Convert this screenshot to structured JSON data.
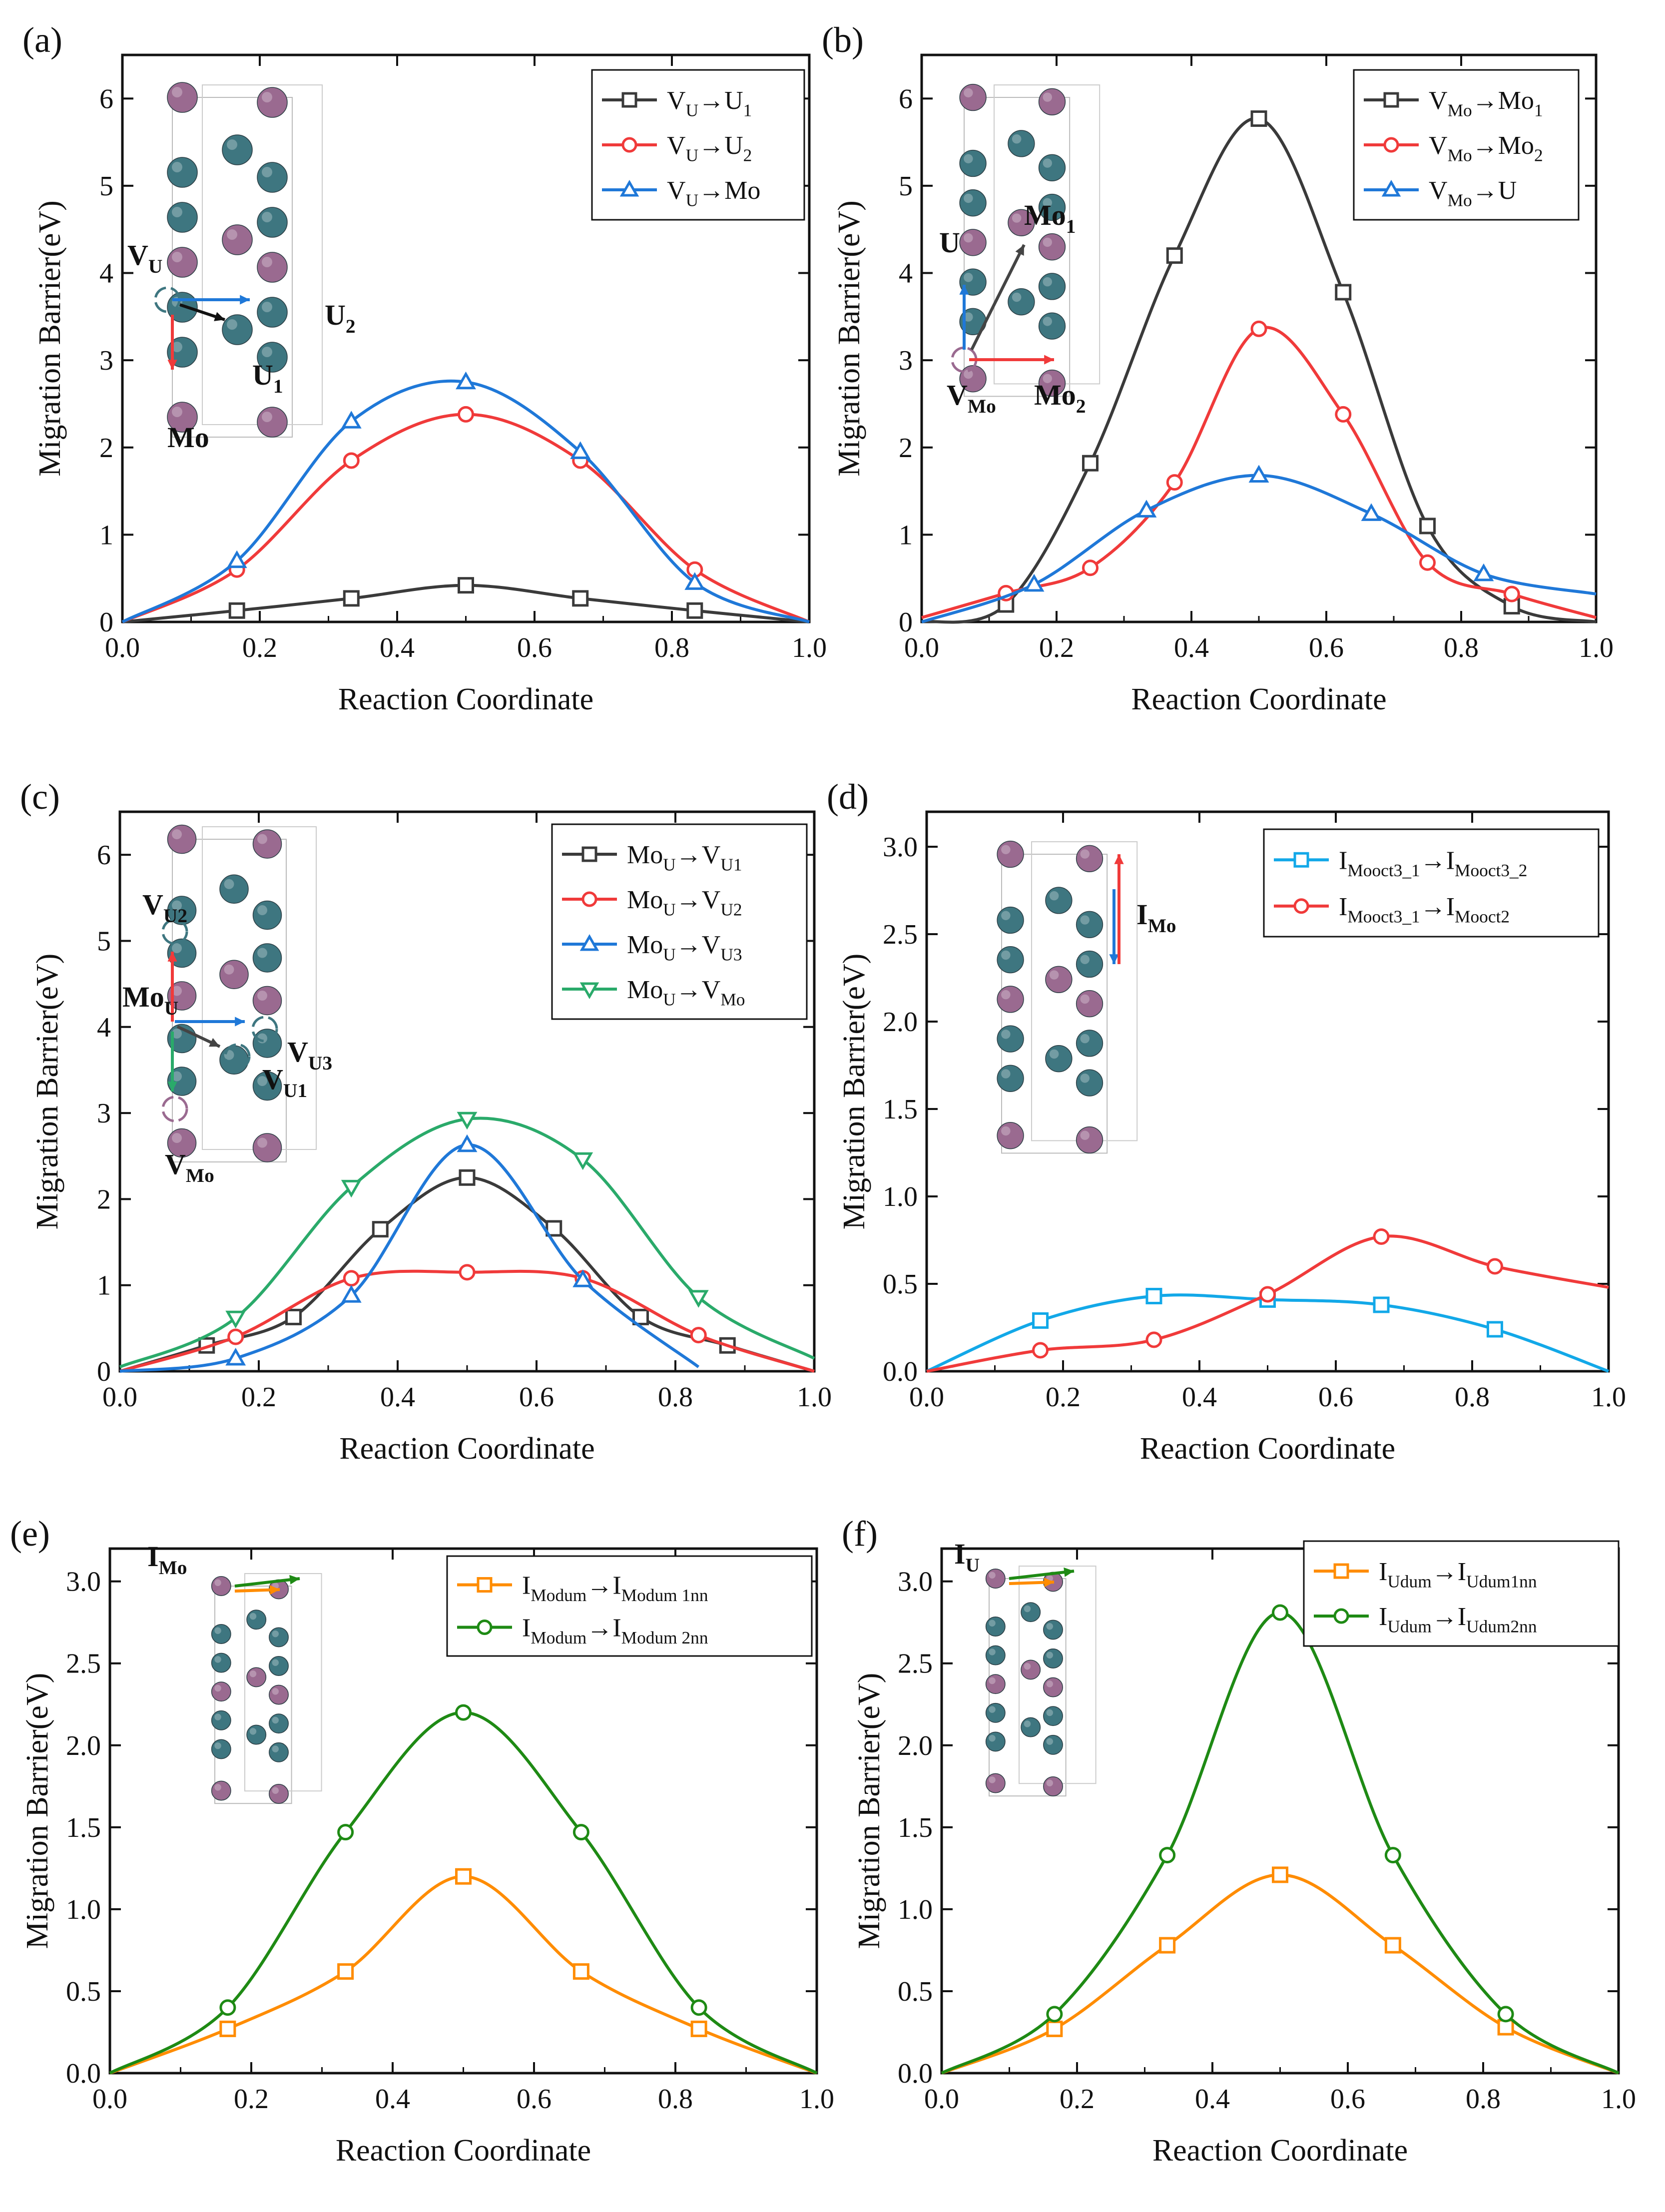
{
  "figure": {
    "description_free": true
  },
  "colors": {
    "black": "#3a3a3a",
    "red": "#f03a3a",
    "blue": "#1f78d8",
    "green": "#2aaa6a",
    "cyan": "#12a8e8",
    "orange": "#ff8c00",
    "darkgreen": "#1e8a14",
    "atom_u": "#3e7680",
    "atom_mo": "#9a6a90"
  },
  "chart_data": [
    {
      "panel": "(a)",
      "type": "line",
      "xlabel": "Reaction Coordinate",
      "ylabel": "Migration Barrier(eV)",
      "xlim": [
        0,
        1
      ],
      "ylim": [
        0,
        6.5
      ],
      "xticks": [
        0,
        0.2,
        0.4,
        0.6,
        0.8,
        1.0
      ],
      "xtick_labels": [
        "0.0",
        "0.2",
        "0.4",
        "0.6",
        "0.8",
        "1.0"
      ],
      "yticks": [
        0,
        1,
        2,
        3,
        4,
        5,
        6
      ],
      "ytick_labels": [
        "0",
        "1",
        "2",
        "3",
        "4",
        "5",
        "6"
      ],
      "legend_position": "top-right",
      "inset_labels": [
        "V_U",
        "U_2",
        "U_1",
        "Mo"
      ],
      "series": [
        {
          "name": "V_U→U_1",
          "color": "#3a3a3a",
          "marker": "square",
          "x": [
            0,
            0.1667,
            0.3333,
            0.5,
            0.6667,
            0.8333,
            1.0
          ],
          "y": [
            0,
            0.13,
            0.27,
            0.42,
            0.27,
            0.13,
            0
          ]
        },
        {
          "name": "V_U→U_2",
          "color": "#f03a3a",
          "marker": "circle",
          "x": [
            0,
            0.1667,
            0.3333,
            0.5,
            0.6667,
            0.8333,
            1.0
          ],
          "y": [
            0,
            0.6,
            1.85,
            2.38,
            1.85,
            0.6,
            0
          ]
        },
        {
          "name": "V_U→Mo",
          "color": "#1f78d8",
          "marker": "triangle-up",
          "x": [
            0,
            0.1667,
            0.3333,
            0.5,
            0.6667,
            0.8333,
            1.0
          ],
          "y": [
            0,
            0.7,
            2.3,
            2.75,
            1.95,
            0.45,
            0
          ]
        }
      ]
    },
    {
      "panel": "(b)",
      "type": "line",
      "xlabel": "Reaction Coordinate",
      "ylabel": "Migration Barrier(eV)",
      "xlim": [
        0,
        1
      ],
      "ylim": [
        0,
        6.5
      ],
      "xticks": [
        0,
        0.2,
        0.4,
        0.6,
        0.8,
        1.0
      ],
      "xtick_labels": [
        "0.0",
        "0.2",
        "0.4",
        "0.6",
        "0.8",
        "1.0"
      ],
      "yticks": [
        0,
        1,
        2,
        3,
        4,
        5,
        6
      ],
      "ytick_labels": [
        "0",
        "1",
        "2",
        "3",
        "4",
        "5",
        "6"
      ],
      "legend_position": "top-right",
      "inset_labels": [
        "Mo_1",
        "U",
        "V_Mo",
        "Mo_2"
      ],
      "series": [
        {
          "name": "V_Mo→Mo_1",
          "color": "#3a3a3a",
          "marker": "square",
          "x": [
            0,
            0.125,
            0.25,
            0.375,
            0.5,
            0.625,
            0.75,
            0.875,
            1.0
          ],
          "y": [
            0,
            0.2,
            1.82,
            4.2,
            5.77,
            3.78,
            1.1,
            0.18,
            0
          ]
        },
        {
          "name": "V_Mo→Mo_2",
          "color": "#f03a3a",
          "marker": "circle",
          "x": [
            0,
            0.125,
            0.25,
            0.375,
            0.5,
            0.625,
            0.75,
            0.875,
            1.0
          ],
          "y": [
            0.05,
            0.33,
            0.62,
            1.6,
            3.36,
            2.38,
            0.68,
            0.32,
            0.05
          ]
        },
        {
          "name": "V_Mo→U",
          "color": "#1f78d8",
          "marker": "triangle-up",
          "x": [
            0,
            0.1667,
            0.3333,
            0.5,
            0.6667,
            0.8333,
            1.0
          ],
          "y": [
            0,
            0.43,
            1.28,
            1.68,
            1.24,
            0.55,
            0.32
          ]
        }
      ]
    },
    {
      "panel": "(c)",
      "type": "line",
      "xlabel": "Reaction Coordinate",
      "ylabel": "Migration Barrier(eV)",
      "xlim": [
        0,
        1
      ],
      "ylim": [
        0,
        6.5
      ],
      "xticks": [
        0,
        0.2,
        0.4,
        0.6,
        0.8,
        1.0
      ],
      "xtick_labels": [
        "0.0",
        "0.2",
        "0.4",
        "0.6",
        "0.8",
        "1.0"
      ],
      "yticks": [
        0,
        1,
        2,
        3,
        4,
        5,
        6
      ],
      "ytick_labels": [
        "0",
        "1",
        "2",
        "3",
        "4",
        "5",
        "6"
      ],
      "legend_position": "top-right",
      "inset_labels": [
        "V_U2",
        "Mo_U",
        "V_U3",
        "V_U1",
        "V_Mo"
      ],
      "series": [
        {
          "name": "Mo_U→V_U1",
          "color": "#3a3a3a",
          "marker": "square",
          "x": [
            0,
            0.125,
            0.25,
            0.375,
            0.5,
            0.625,
            0.75,
            0.875,
            1.0
          ],
          "y": [
            0,
            0.3,
            0.63,
            1.65,
            2.25,
            1.66,
            0.63,
            0.3,
            0
          ]
        },
        {
          "name": "Mo_U→V_U2",
          "color": "#f03a3a",
          "marker": "circle",
          "x": [
            0,
            0.1667,
            0.3333,
            0.5,
            0.6667,
            0.8333,
            1.0
          ],
          "y": [
            0,
            0.4,
            1.08,
            1.15,
            1.08,
            0.42,
            0
          ]
        },
        {
          "name": "Mo_U→V_U3",
          "color": "#1f78d8",
          "marker": "triangle-up",
          "x": [
            0,
            0.1667,
            0.3333,
            0.5,
            0.6667,
            0.8333
          ],
          "y": [
            0,
            0.15,
            0.88,
            2.63,
            1.06,
            0.05
          ]
        },
        {
          "name": "Mo_U→V_Mo",
          "color": "#2aaa6a",
          "marker": "triangle-down",
          "x": [
            0,
            0.1667,
            0.3333,
            0.5,
            0.6667,
            0.8333,
            1.0
          ],
          "y": [
            0.05,
            0.62,
            2.14,
            2.93,
            2.46,
            0.86,
            0.15
          ]
        }
      ]
    },
    {
      "panel": "(d)",
      "type": "line",
      "xlabel": "Reaction Coordinate",
      "ylabel": "Migration Barrier(eV)",
      "xlim": [
        0,
        1
      ],
      "ylim": [
        0,
        3.2
      ],
      "xticks": [
        0,
        0.2,
        0.4,
        0.6,
        0.8,
        1.0
      ],
      "xtick_labels": [
        "0.0",
        "0.2",
        "0.4",
        "0.6",
        "0.8",
        "1.0"
      ],
      "yticks": [
        0,
        0.5,
        1,
        1.5,
        2,
        2.5,
        3
      ],
      "ytick_labels": [
        "0.0",
        "0.5",
        "1.0",
        "1.5",
        "2.0",
        "2.5",
        "3.0"
      ],
      "legend_position": "top-right",
      "inset_labels": [
        "I_Mo"
      ],
      "series": [
        {
          "name": "I_Mooct3_1→I_Mooct3_2",
          "color": "#12a8e8",
          "marker": "square",
          "x": [
            0,
            0.1667,
            0.3333,
            0.5,
            0.6667,
            0.8333,
            1.0
          ],
          "y": [
            0,
            0.29,
            0.43,
            0.41,
            0.38,
            0.24,
            0
          ]
        },
        {
          "name": "I_Mooct3_1→I_Mooct2",
          "color": "#f03a3a",
          "marker": "circle",
          "x": [
            0,
            0.1667,
            0.3333,
            0.5,
            0.6667,
            0.8333,
            1.0
          ],
          "y": [
            0,
            0.12,
            0.18,
            0.44,
            0.77,
            0.6,
            0.48
          ]
        }
      ]
    },
    {
      "panel": "(e)",
      "type": "line",
      "xlabel": "Reaction Coordinate",
      "ylabel": "Migration Barrier(eV)",
      "xlim": [
        0,
        1
      ],
      "ylim": [
        0,
        3.2
      ],
      "xticks": [
        0,
        0.2,
        0.4,
        0.6,
        0.8,
        1.0
      ],
      "xtick_labels": [
        "0.0",
        "0.2",
        "0.4",
        "0.6",
        "0.8",
        "1.0"
      ],
      "yticks": [
        0,
        0.5,
        1,
        1.5,
        2,
        2.5,
        3
      ],
      "ytick_labels": [
        "0.0",
        "0.5",
        "1.0",
        "1.5",
        "2.0",
        "2.5",
        "3.0"
      ],
      "legend_position": "top-right",
      "inset_labels": [
        "I_Mo"
      ],
      "series": [
        {
          "name": "I_Modum→I_Modum 1nn",
          "color": "#ff8c00",
          "marker": "square",
          "x": [
            0,
            0.1667,
            0.3333,
            0.5,
            0.6667,
            0.8333,
            1.0
          ],
          "y": [
            0,
            0.27,
            0.62,
            1.2,
            0.62,
            0.27,
            0
          ]
        },
        {
          "name": "I_Modum→I_Modum 2nn",
          "color": "#1e8a14",
          "marker": "circle",
          "x": [
            0,
            0.1667,
            0.3333,
            0.5,
            0.6667,
            0.8333,
            1.0
          ],
          "y": [
            0,
            0.4,
            1.47,
            2.2,
            1.47,
            0.4,
            0
          ]
        }
      ]
    },
    {
      "panel": "(f)",
      "type": "line",
      "xlabel": "Reaction Coordinate",
      "ylabel": "Migration Barrier(eV)",
      "xlim": [
        0,
        1
      ],
      "ylim": [
        0,
        3.2
      ],
      "xticks": [
        0,
        0.2,
        0.4,
        0.6,
        0.8,
        1.0
      ],
      "xtick_labels": [
        "0.0",
        "0.2",
        "0.4",
        "0.6",
        "0.8",
        "1.0"
      ],
      "yticks": [
        0,
        0.5,
        1,
        1.5,
        2,
        2.5,
        3
      ],
      "ytick_labels": [
        "0.0",
        "0.5",
        "1.0",
        "1.5",
        "2.0",
        "2.5",
        "3.0"
      ],
      "legend_position": "top-right",
      "inset_labels": [
        "I_U"
      ],
      "series": [
        {
          "name": "I_Udum→I_Udum1nn",
          "color": "#ff8c00",
          "marker": "square",
          "x": [
            0,
            0.1667,
            0.3333,
            0.5,
            0.6667,
            0.8333,
            1.0
          ],
          "y": [
            0,
            0.27,
            0.78,
            1.21,
            0.78,
            0.28,
            0
          ]
        },
        {
          "name": "I_Udum→I_Udum2nn",
          "color": "#1e8a14",
          "marker": "circle",
          "x": [
            0,
            0.1667,
            0.3333,
            0.5,
            0.6667,
            0.8333,
            1.0
          ],
          "y": [
            0,
            0.36,
            1.33,
            2.81,
            1.33,
            0.36,
            0
          ]
        }
      ]
    }
  ]
}
